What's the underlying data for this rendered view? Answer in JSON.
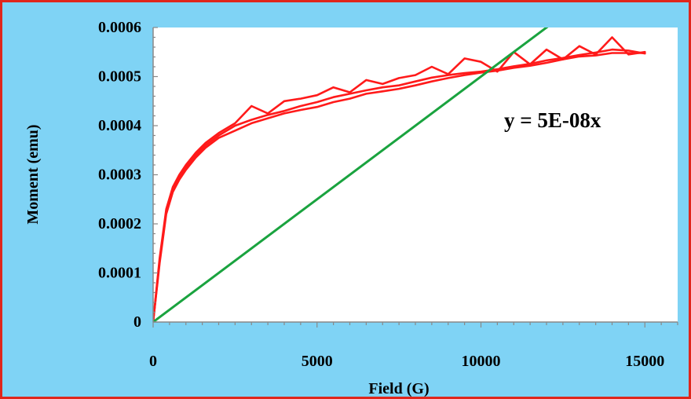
{
  "chart_data": {
    "type": "line",
    "title": "",
    "xlabel": "Field (G)",
    "ylabel": "Moment (emu)",
    "xlim": [
      0,
      16000
    ],
    "ylim": [
      0,
      0.0006
    ],
    "x_ticks": [
      0,
      5000,
      10000,
      15000
    ],
    "x_tick_labels": [
      "0",
      "5000",
      "10000",
      "15000"
    ],
    "y_ticks": [
      0,
      0.0001,
      0.0002,
      0.0003,
      0.0004,
      0.0005,
      0.0006
    ],
    "y_tick_labels": [
      "0",
      "0.0001",
      "0.0002",
      "0.0003",
      "0.0004",
      "0.0005",
      "0.0006"
    ],
    "grid": false,
    "annotations": [
      {
        "text": "y = 5E-08x"
      }
    ],
    "series": [
      {
        "color": "#ff1a1a",
        "x": [
          0,
          200,
          400,
          600,
          800,
          1000,
          1300,
          1600,
          2000,
          2500,
          3000,
          3500,
          4000,
          4500,
          5000,
          5500,
          6000,
          6500,
          7000,
          7500,
          8000,
          8500,
          9000,
          9500,
          10000,
          10500,
          11000,
          11500,
          12000,
          12500,
          13000,
          13500,
          14000,
          14500,
          15000
        ],
        "y": [
          0,
          0.00012,
          0.00022,
          0.000265,
          0.00029,
          0.00031,
          0.000335,
          0.000355,
          0.000375,
          0.00039,
          0.000405,
          0.000415,
          0.000425,
          0.000432,
          0.000438,
          0.000448,
          0.000455,
          0.000465,
          0.00047,
          0.000475,
          0.000482,
          0.00049,
          0.000497,
          0.000503,
          0.000508,
          0.000512,
          0.000518,
          0.000522,
          0.000528,
          0.000535,
          0.000541,
          0.000543,
          0.000548,
          0.000548,
          0.000548
        ]
      },
      {
        "color": "#ff1a1a",
        "x": [
          0,
          200,
          400,
          600,
          800,
          1000,
          1300,
          1600,
          2000,
          2500,
          3000,
          3500,
          4000,
          4500,
          5000,
          5500,
          6000,
          6500,
          7000,
          7500,
          8000,
          8500,
          9000,
          9500,
          10000,
          10500,
          11000,
          11500,
          12000,
          12500,
          13000,
          13500,
          14000,
          14500,
          15000
        ],
        "y": [
          0,
          0.000125,
          0.000225,
          0.00027,
          0.000295,
          0.000315,
          0.00034,
          0.00036,
          0.00038,
          0.0004,
          0.000412,
          0.000422,
          0.00043,
          0.00044,
          0.000448,
          0.000458,
          0.000465,
          0.000472,
          0.000478,
          0.000482,
          0.00049,
          0.000498,
          0.000503,
          0.000507,
          0.00051,
          0.000515,
          0.000521,
          0.000526,
          0.000533,
          0.000538,
          0.000544,
          0.000549,
          0.000555,
          0.000553,
          0.000547
        ]
      },
      {
        "color": "#ff1a1a",
        "x": [
          0,
          200,
          400,
          600,
          800,
          1000,
          1300,
          1600,
          2000,
          2500,
          3000,
          3500,
          4000,
          4500,
          5000,
          5500,
          6000,
          6500,
          7000,
          7500,
          8000,
          8500,
          9000,
          9500,
          10000,
          10500,
          11000,
          11500,
          12000,
          12500,
          13000,
          13500,
          14000,
          14500,
          15000
        ],
        "y": [
          0,
          0.00013,
          0.00023,
          0.000275,
          0.0003,
          0.00032,
          0.000345,
          0.000365,
          0.000385,
          0.000405,
          0.00044,
          0.000425,
          0.00045,
          0.000455,
          0.000462,
          0.000478,
          0.000468,
          0.000493,
          0.000485,
          0.000497,
          0.000503,
          0.00052,
          0.000505,
          0.000537,
          0.00053,
          0.00051,
          0.00055,
          0.000525,
          0.000555,
          0.000535,
          0.000562,
          0.000545,
          0.00058,
          0.000545,
          0.00055
        ]
      },
      {
        "color": "#1aa33f",
        "x": [
          0,
          16000
        ],
        "y": [
          0,
          0.0008
        ]
      }
    ]
  }
}
